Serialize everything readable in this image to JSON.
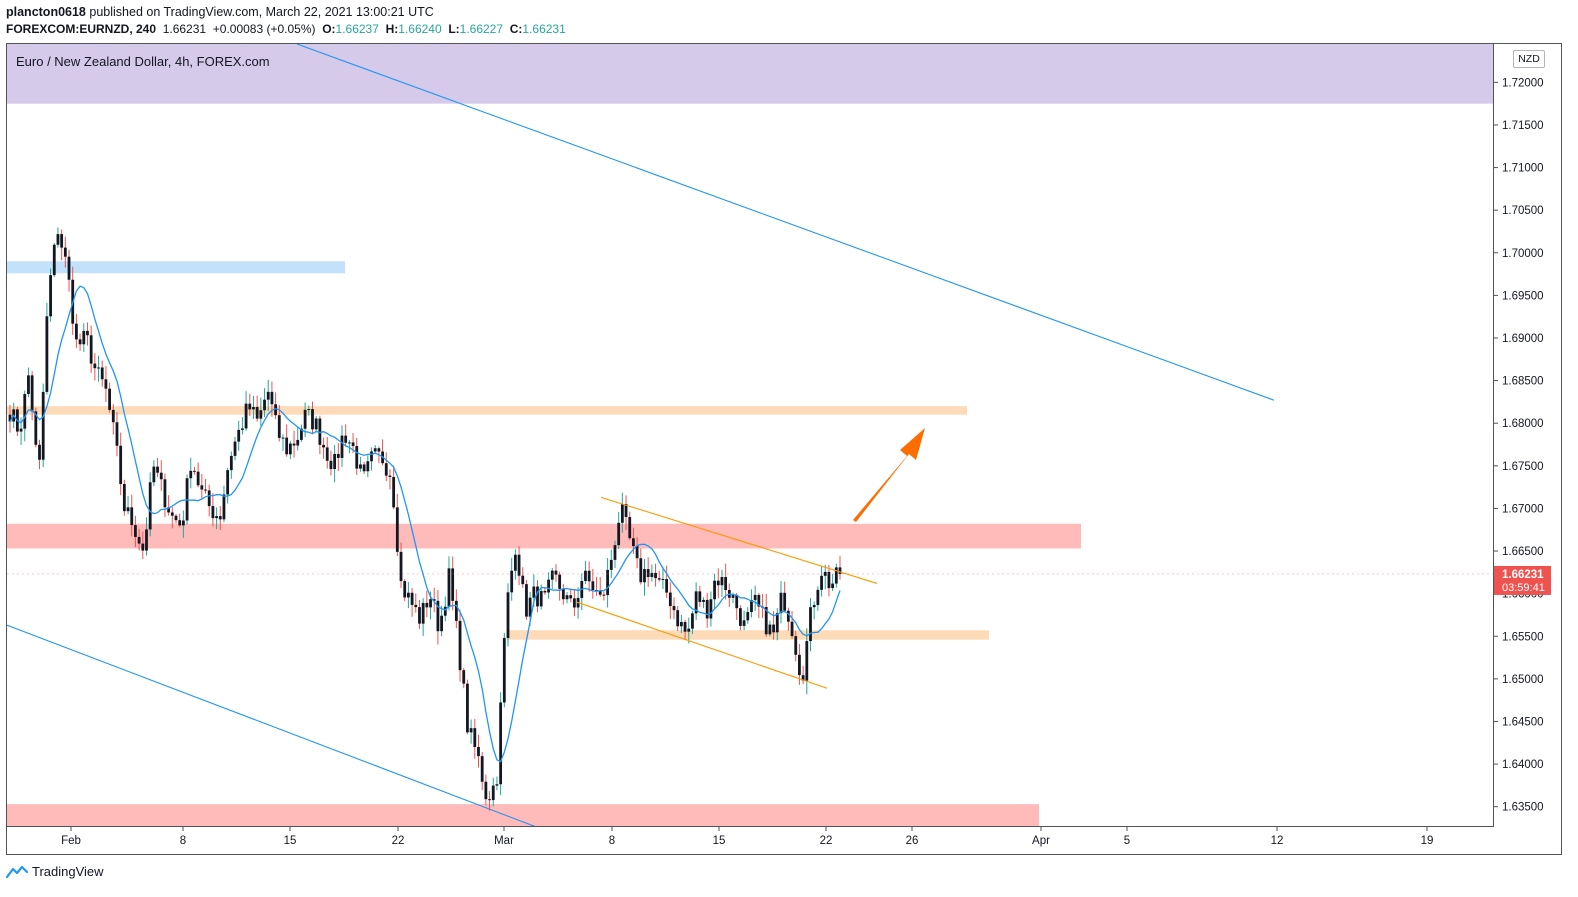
{
  "header": {
    "author": "plancton0618",
    "published_text": "published on TradingView.com, March 22, 2021 13:00:21 UTC",
    "symbol": "FOREXCOM:EURNZD, 240",
    "last": "1.66231",
    "change": "+0.00083 (+0.05%)",
    "o_label": "O:",
    "o_value": "1.66237",
    "h_label": "H:",
    "h_value": "1.66240",
    "l_label": "L:",
    "l_value": "1.66227",
    "c_label": "C:",
    "c_value": "1.66231"
  },
  "chart_title": "Euro / New Zealand Dollar, 4h, FOREX.com",
  "currency_unit": "NZD",
  "price_label": "1.66231",
  "countdown_label": "03:59:41",
  "footer_brand": "TradingView",
  "colors": {
    "up": "#26a69a",
    "down": "#ef5350",
    "candle": "#131722",
    "ma": "#2196f3",
    "channel": "#ff9800",
    "arrow": "#ff6d00",
    "resistance_zone": "#ffb3b3",
    "support_zone": "#fdd6b0",
    "top_zone": "#d1c4e9",
    "blue_zone": "#bbdefb",
    "price_tag": "#ef5350"
  },
  "chart_data": {
    "type": "candlestick",
    "symbol": "FOREXCOM:EURNZD",
    "timeframe": "240",
    "ylim": [
      1.6325,
      1.7245
    ],
    "y_ticks": [
      "1.72000",
      "1.71500",
      "1.71000",
      "1.70500",
      "1.70000",
      "1.69500",
      "1.69000",
      "1.68500",
      "1.68000",
      "1.67500",
      "1.67000",
      "1.66500",
      "1.66000",
      "1.65500",
      "1.65000",
      "1.64500",
      "1.64000",
      "1.63500"
    ],
    "x_ticks": [
      "Feb",
      "8",
      "15",
      "22",
      "Mar",
      "8",
      "15",
      "22",
      "26",
      "Apr",
      "5",
      "12",
      "19"
    ],
    "anchors": [
      [
        1.6815,
        1.679,
        1.686,
        1.673,
        1.695,
        1.703,
        1.698,
        1.689,
        1.69,
        1.686,
        1.684
      ],
      [
        1.678,
        1.67,
        1.668,
        1.665,
        1.675,
        1.672,
        1.669,
        1.668,
        1.676,
        1.672,
        1.67
      ],
      [
        1.669,
        1.676,
        1.679,
        1.682,
        1.68,
        1.684,
        1.679,
        1.677,
        1.678,
        1.681,
        1.68
      ],
      [
        1.677,
        1.675,
        1.679,
        1.677,
        1.673,
        1.676,
        1.676,
        1.674,
        1.661,
        1.659,
        1.657
      ],
      [
        1.66,
        1.656,
        1.662,
        1.654,
        1.644,
        1.641,
        1.636,
        1.638,
        1.658,
        1.666,
        1.658
      ],
      [
        1.66,
        1.659,
        1.662,
        1.66,
        1.658,
        1.662,
        1.661,
        1.659,
        1.664,
        1.67,
        1.666
      ],
      [
        1.662,
        1.663,
        1.661,
        1.66,
        1.657,
        1.655,
        1.66,
        1.658,
        1.662,
        1.661,
        1.659
      ],
      [
        1.656,
        1.659,
        1.657,
        1.655,
        1.66,
        1.656,
        1.65,
        1.658,
        1.663,
        1.661,
        1.6623
      ]
    ],
    "last_close": 1.66231,
    "zones": [
      {
        "name": "top",
        "from": 1.7175,
        "to": 1.7245
      },
      {
        "name": "blue",
        "from": 1.6976,
        "to": 1.699
      },
      {
        "name": "support-upper",
        "from": 1.681,
        "to": 1.682
      },
      {
        "name": "resistance",
        "from": 1.6653,
        "to": 1.6682
      },
      {
        "name": "support-lower",
        "from": 1.6546,
        "to": 1.6557
      },
      {
        "name": "bottom",
        "from": 1.6325,
        "to": 1.6353
      }
    ],
    "channel_upper": [
      [
        1.6713,
        1.6612
      ]
    ],
    "channel_lower": [
      [
        1.659,
        1.6489
      ]
    ],
    "trend_upper": [
      1.7245,
      1.6827
    ],
    "trend_lower": [
      1.6563,
      1.6325
    ],
    "grid": false,
    "moving_average": true
  }
}
